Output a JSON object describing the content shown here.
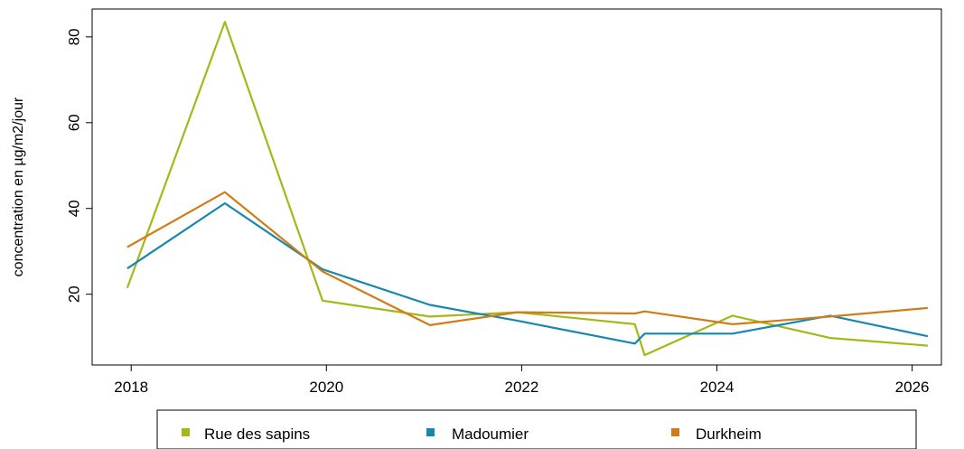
{
  "chart_data": {
    "type": "line",
    "title": "",
    "xlabel": "",
    "ylabel": "concentration en µg/m2/jour",
    "xlim": [
      2017.6,
      2026.3
    ],
    "ylim": [
      3.5,
      86.5
    ],
    "x_ticks": [
      2018,
      2020,
      2022,
      2024,
      2026
    ],
    "x_tick_labels": [
      "2018",
      "2020",
      "2022",
      "2024",
      "2026"
    ],
    "y_ticks": [
      20,
      40,
      60,
      80
    ],
    "y_tick_labels": [
      "20",
      "40",
      "60",
      "80"
    ],
    "grid": false,
    "legend_position": "bottom",
    "series": [
      {
        "name": "Rue des sapins",
        "color": "#a5b817",
        "x": [
          2017.96,
          2018.96,
          2019.96,
          2021.06,
          2021.96,
          2023.16,
          2023.26,
          2024.16,
          2025.16,
          2026.16
        ],
        "y": [
          21.5,
          83.5,
          18.5,
          14.8,
          15.8,
          13.0,
          5.8,
          15.0,
          9.8,
          8.0
        ]
      },
      {
        "name": "Madoumier",
        "color": "#1787ad",
        "x": [
          2017.96,
          2018.96,
          2019.96,
          2021.06,
          2021.96,
          2023.16,
          2023.26,
          2024.16,
          2025.16,
          2026.16
        ],
        "y": [
          26.0,
          41.2,
          25.8,
          17.5,
          13.8,
          8.5,
          10.8,
          10.8,
          15.0,
          10.2
        ]
      },
      {
        "name": "Durkheim",
        "color": "#d07d17",
        "x": [
          2017.96,
          2018.96,
          2019.96,
          2021.06,
          2021.96,
          2023.16,
          2023.26,
          2024.16,
          2025.16,
          2026.16
        ],
        "y": [
          31.0,
          43.8,
          25.3,
          12.8,
          15.8,
          15.5,
          16.0,
          13.0,
          14.8,
          16.8
        ]
      }
    ]
  }
}
